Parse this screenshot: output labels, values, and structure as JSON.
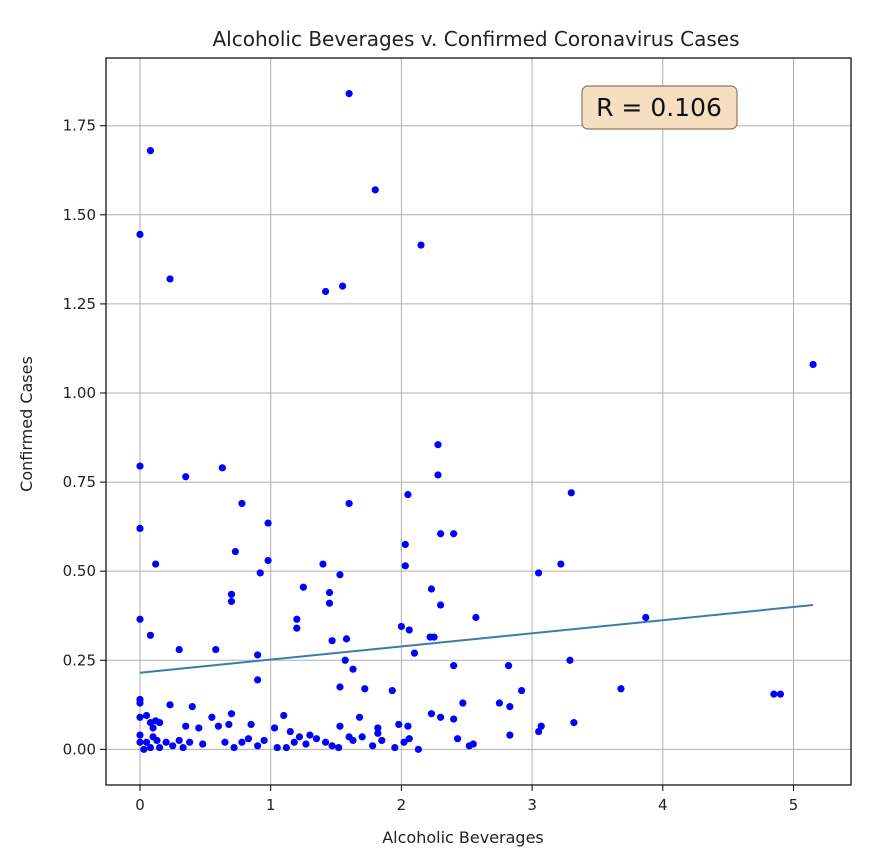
{
  "chart_data": {
    "type": "scatter",
    "title": "Alcoholic Beverages v. Confirmed Coronavirus Cases",
    "xlabel": "Alcoholic Beverages",
    "ylabel": "Confirmed Cases",
    "xlim": [
      -0.26,
      5.44
    ],
    "ylim": [
      -0.1,
      1.94
    ],
    "xticks": [
      0,
      1,
      2,
      3,
      4,
      5
    ],
    "xtick_labels": [
      "0",
      "1",
      "2",
      "3",
      "4",
      "5"
    ],
    "yticks": [
      0.0,
      0.25,
      0.5,
      0.75,
      1.0,
      1.25,
      1.5,
      1.75
    ],
    "ytick_labels": [
      "0.00",
      "0.25",
      "0.50",
      "0.75",
      "1.00",
      "1.25",
      "1.50",
      "1.75"
    ],
    "grid": true,
    "point_color": "#0000ff",
    "line_color": "#3b7bb0",
    "annotation": "R = 0.106",
    "annotation_bg": "#f5dfc0",
    "annotation_border": "#8a7a66",
    "trend_line": {
      "x": [
        0.0,
        5.15
      ],
      "y": [
        0.215,
        0.405
      ]
    },
    "series": [
      {
        "points": [
          [
            0.0,
            1.445
          ],
          [
            0.08,
            1.68
          ],
          [
            0.23,
            1.32
          ],
          [
            1.6,
            1.84
          ],
          [
            1.8,
            1.57
          ],
          [
            2.15,
            1.415
          ],
          [
            1.42,
            1.285
          ],
          [
            1.55,
            1.3
          ],
          [
            5.15,
            1.08
          ],
          [
            0.0,
            0.795
          ],
          [
            0.35,
            0.765
          ],
          [
            0.63,
            0.79
          ],
          [
            0.78,
            0.69
          ],
          [
            1.6,
            0.69
          ],
          [
            2.28,
            0.855
          ],
          [
            2.28,
            0.77
          ],
          [
            2.05,
            0.715
          ],
          [
            3.3,
            0.72
          ],
          [
            0.0,
            0.62
          ],
          [
            0.98,
            0.635
          ],
          [
            0.73,
            0.555
          ],
          [
            2.3,
            0.605
          ],
          [
            2.4,
            0.605
          ],
          [
            2.03,
            0.575
          ],
          [
            0.12,
            0.52
          ],
          [
            0.98,
            0.53
          ],
          [
            1.4,
            0.52
          ],
          [
            2.03,
            0.515
          ],
          [
            3.22,
            0.52
          ],
          [
            0.92,
            0.495
          ],
          [
            1.53,
            0.49
          ],
          [
            3.05,
            0.495
          ],
          [
            0.7,
            0.435
          ],
          [
            0.7,
            0.415
          ],
          [
            1.25,
            0.455
          ],
          [
            1.45,
            0.44
          ],
          [
            1.45,
            0.41
          ],
          [
            2.23,
            0.45
          ],
          [
            2.3,
            0.405
          ],
          [
            0.0,
            0.365
          ],
          [
            1.2,
            0.365
          ],
          [
            1.2,
            0.34
          ],
          [
            2.57,
            0.37
          ],
          [
            3.87,
            0.37
          ],
          [
            0.08,
            0.32
          ],
          [
            1.47,
            0.305
          ],
          [
            1.58,
            0.31
          ],
          [
            2.0,
            0.345
          ],
          [
            2.06,
            0.335
          ],
          [
            2.22,
            0.315
          ],
          [
            2.25,
            0.315
          ],
          [
            0.3,
            0.28
          ],
          [
            0.58,
            0.28
          ],
          [
            0.9,
            0.265
          ],
          [
            1.57,
            0.25
          ],
          [
            1.63,
            0.225
          ],
          [
            2.1,
            0.27
          ],
          [
            2.4,
            0.235
          ],
          [
            2.82,
            0.235
          ],
          [
            3.29,
            0.25
          ],
          [
            0.9,
            0.195
          ],
          [
            1.53,
            0.175
          ],
          [
            1.72,
            0.17
          ],
          [
            1.93,
            0.165
          ],
          [
            2.92,
            0.165
          ],
          [
            3.68,
            0.17
          ],
          [
            4.85,
            0.155
          ],
          [
            4.9,
            0.155
          ],
          [
            0.0,
            0.14
          ],
          [
            0.0,
            0.13
          ],
          [
            0.23,
            0.125
          ],
          [
            0.4,
            0.12
          ],
          [
            2.47,
            0.13
          ],
          [
            2.75,
            0.13
          ],
          [
            2.83,
            0.12
          ],
          [
            0.05,
            0.095
          ],
          [
            0.0,
            0.09
          ],
          [
            0.55,
            0.09
          ],
          [
            0.7,
            0.1
          ],
          [
            1.1,
            0.095
          ],
          [
            1.68,
            0.09
          ],
          [
            2.23,
            0.1
          ],
          [
            2.3,
            0.09
          ],
          [
            2.4,
            0.085
          ],
          [
            0.08,
            0.075
          ],
          [
            0.12,
            0.08
          ],
          [
            0.1,
            0.06
          ],
          [
            0.15,
            0.075
          ],
          [
            0.35,
            0.065
          ],
          [
            0.45,
            0.06
          ],
          [
            0.6,
            0.065
          ],
          [
            0.68,
            0.07
          ],
          [
            0.85,
            0.07
          ],
          [
            1.03,
            0.06
          ],
          [
            1.15,
            0.05
          ],
          [
            1.3,
            0.04
          ],
          [
            1.53,
            0.065
          ],
          [
            1.6,
            0.035
          ],
          [
            1.82,
            0.06
          ],
          [
            1.82,
            0.045
          ],
          [
            1.98,
            0.07
          ],
          [
            2.05,
            0.065
          ],
          [
            3.07,
            0.065
          ],
          [
            3.05,
            0.05
          ],
          [
            3.32,
            0.075
          ],
          [
            2.83,
            0.04
          ],
          [
            2.43,
            0.03
          ],
          [
            0.0,
            0.04
          ],
          [
            0.0,
            0.02
          ],
          [
            0.03,
            0.0
          ],
          [
            0.05,
            0.02
          ],
          [
            0.08,
            0.005
          ],
          [
            0.1,
            0.035
          ],
          [
            0.13,
            0.025
          ],
          [
            0.15,
            0.005
          ],
          [
            0.2,
            0.02
          ],
          [
            0.25,
            0.01
          ],
          [
            0.3,
            0.025
          ],
          [
            0.33,
            0.005
          ],
          [
            0.38,
            0.02
          ],
          [
            0.48,
            0.015
          ],
          [
            0.65,
            0.02
          ],
          [
            0.72,
            0.005
          ],
          [
            0.78,
            0.02
          ],
          [
            0.83,
            0.03
          ],
          [
            0.9,
            0.01
          ],
          [
            0.95,
            0.025
          ],
          [
            1.05,
            0.005
          ],
          [
            1.12,
            0.005
          ],
          [
            1.18,
            0.02
          ],
          [
            1.22,
            0.035
          ],
          [
            1.27,
            0.015
          ],
          [
            1.35,
            0.03
          ],
          [
            1.42,
            0.02
          ],
          [
            1.47,
            0.01
          ],
          [
            1.52,
            0.005
          ],
          [
            1.63,
            0.025
          ],
          [
            1.7,
            0.035
          ],
          [
            1.78,
            0.01
          ],
          [
            1.85,
            0.025
          ],
          [
            1.95,
            0.005
          ],
          [
            2.02,
            0.02
          ],
          [
            2.06,
            0.03
          ],
          [
            2.13,
            0.0
          ],
          [
            2.52,
            0.01
          ],
          [
            2.55,
            0.015
          ]
        ]
      }
    ]
  }
}
